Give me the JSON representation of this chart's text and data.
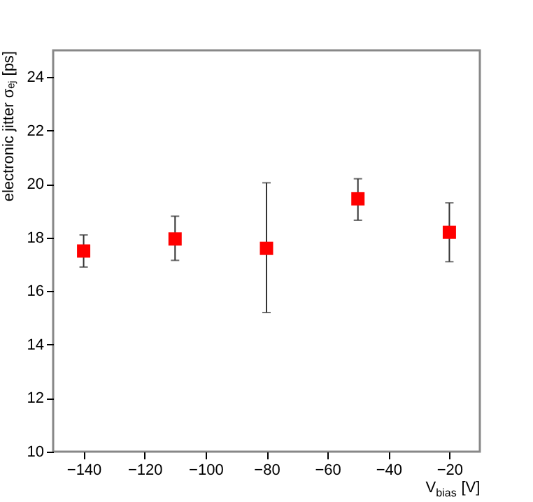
{
  "chart_data": {
    "type": "scatter",
    "xlabel": "V$_{bias}$ [V]",
    "ylabel": "electronic jitter σₑⱼ [ps]",
    "x": [
      -140,
      -110,
      -80,
      -50,
      -20
    ],
    "series": [
      {
        "color": "#ff0000",
        "values": [
          17.5,
          17.95,
          17.6,
          19.45,
          18.2
        ],
        "errors": [
          [
            16.9,
            18.1
          ],
          [
            17.15,
            18.8
          ],
          [
            15.2,
            20.05
          ],
          [
            18.65,
            20.2
          ],
          [
            17.1,
            19.3
          ]
        ]
      }
    ],
    "xlim": [
      -150,
      -10
    ],
    "xticks": [
      -140,
      -120,
      -100,
      -80,
      -60,
      -40,
      -20
    ],
    "ylim": [
      10,
      25
    ],
    "yticks": [
      10,
      12,
      14,
      16,
      18,
      20,
      22,
      24
    ],
    "grid": false,
    "marker": "square"
  }
}
